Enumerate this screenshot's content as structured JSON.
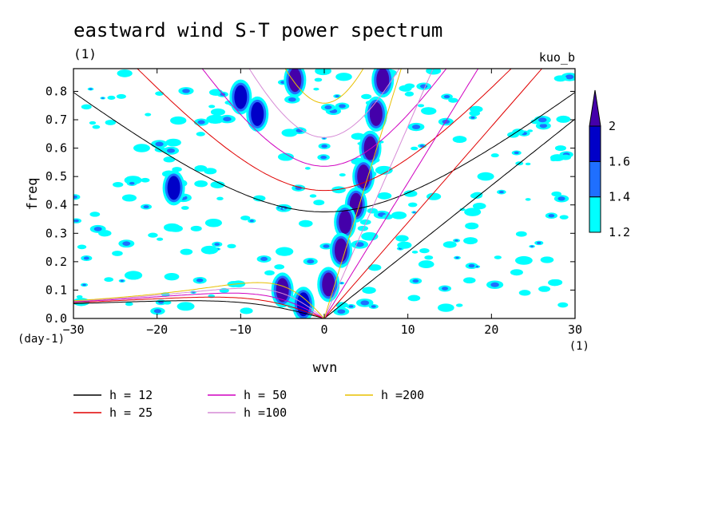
{
  "chart_data": {
    "type": "heatmap",
    "title": "eastward wind S-T power spectrum",
    "subtitle": "(1)",
    "run_label": "kuo_b",
    "xlabel": "wvn",
    "xunit": "(1)",
    "ylabel": "freq",
    "yunit": "(day-1)",
    "xlim": [
      -30,
      30
    ],
    "ylim": [
      0,
      0.88
    ],
    "xticks": [
      -30,
      -20,
      -10,
      0,
      10,
      20,
      30
    ],
    "yticks": [
      0.0,
      0.1,
      0.2,
      0.3,
      0.4,
      0.5,
      0.6,
      0.7,
      0.8
    ],
    "ytick_labels": [
      "0.0",
      "0.1",
      "0.2",
      "0.3",
      "0.4",
      "0.5",
      "0.6",
      "0.7",
      "0.8"
    ],
    "colorbar": {
      "levels": [
        1.2,
        1.4,
        1.6,
        2
      ],
      "labels": [
        "1.2",
        "1.4",
        "1.6",
        "2"
      ],
      "colors": [
        "#00ffff",
        "#1f6fff",
        "#0000c8",
        "#4400aa"
      ]
    },
    "dispersion_curves": [
      {
        "name": "h = 12",
        "h": 12,
        "color": "#000000"
      },
      {
        "name": "h = 25",
        "h": 25,
        "color": "#e00000"
      },
      {
        "name": "h = 50",
        "h": 50,
        "color": "#d000c0"
      },
      {
        "name": "h =100",
        "h": 100,
        "color": "#d68ad6"
      },
      {
        "name": "h =200",
        "h": 200,
        "color": "#e8c000"
      }
    ],
    "high_power_regions": [
      {
        "x": 7.0,
        "y": 0.84,
        "level": 2
      },
      {
        "x": 6.2,
        "y": 0.72,
        "level": 2
      },
      {
        "x": 5.5,
        "y": 0.6,
        "level": 2
      },
      {
        "x": 4.7,
        "y": 0.5,
        "level": 2
      },
      {
        "x": 3.8,
        "y": 0.4,
        "level": 2
      },
      {
        "x": 2.5,
        "y": 0.34,
        "level": 2
      },
      {
        "x": 2.0,
        "y": 0.24,
        "level": 2
      },
      {
        "x": 0.5,
        "y": 0.12,
        "level": 2
      },
      {
        "x": -3.5,
        "y": 0.84,
        "level": 2
      },
      {
        "x": -10.0,
        "y": 0.78,
        "level": 1.6
      },
      {
        "x": -8.0,
        "y": 0.72,
        "level": 1.6
      },
      {
        "x": -18.0,
        "y": 0.46,
        "level": 1.6
      },
      {
        "x": -5.0,
        "y": 0.1,
        "level": 2
      },
      {
        "x": -2.5,
        "y": 0.05,
        "level": 1.6
      }
    ]
  }
}
